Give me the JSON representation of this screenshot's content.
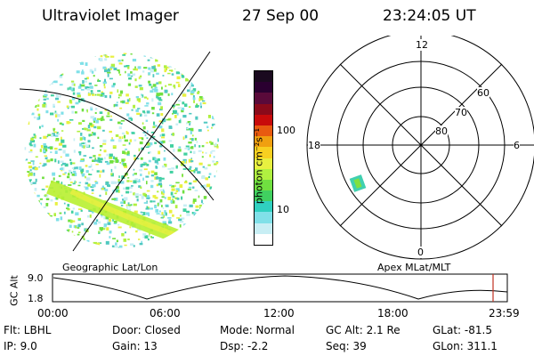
{
  "header": {
    "instrument": "Ultraviolet Imager",
    "date": "27 Sep 00",
    "time": "23:24:05 UT"
  },
  "panels": {
    "left_label": "Geographic Lat/Lon",
    "right_label": "Apex MLat/MLT"
  },
  "colorbar": {
    "unit_label": "photon cm⁻²s⁻¹",
    "ticks": [
      "100",
      "10"
    ],
    "scale": "log",
    "colors": [
      "#1a0a1f",
      "#2a0030",
      "#5a0a3a",
      "#8a0a1a",
      "#c80a0a",
      "#e85a10",
      "#f0a010",
      "#f8d020",
      "#e8f040",
      "#b0f040",
      "#70e040",
      "#40d060",
      "#30d0c0",
      "#80e0e8",
      "#c8eef4",
      "#ffffff"
    ]
  },
  "polar_plot": {
    "mlt_labels": [
      "12",
      "18",
      "6",
      "0"
    ],
    "lat_labels": [
      "60",
      "70",
      "80"
    ]
  },
  "timeline": {
    "axis_label": "GC Alt",
    "y_max_label": "9.0",
    "y_min_label": "1.8",
    "x_ticks": [
      "00:00",
      "06:00",
      "12:00",
      "18:00",
      "23:59"
    ],
    "marker_color": "#c03020"
  },
  "info": {
    "filter": "Flt: LBHL",
    "ip": "IP:  9.0",
    "door": "Door: Closed",
    "gain": "Gain: 13",
    "mode": "Mode: Normal",
    "dsp": "Dsp:   -2.2",
    "gc_alt": "GC Alt: 2.1 Re",
    "seq": "Seq: 39",
    "glat": "GLat: -81.5",
    "glon": "GLon: 311.1"
  }
}
